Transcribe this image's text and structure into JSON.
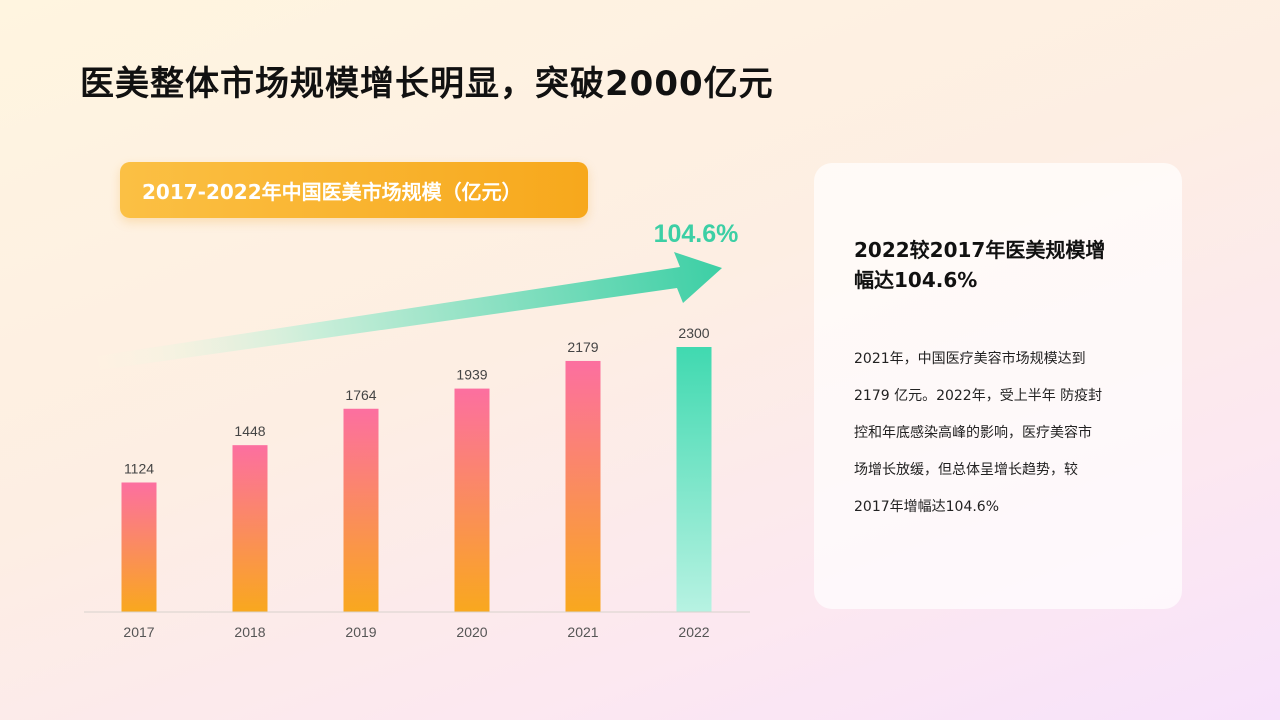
{
  "page": {
    "title": "医美整体市场规模增长明显，突破2000亿元"
  },
  "chart_banner": {
    "label": "2017-2022年中国医美市场规模（亿元）"
  },
  "growth_arrow": {
    "label": "104.6%",
    "color": "#3ccfa5"
  },
  "info_card": {
    "heading": "2022较2017年医美规模增幅达104.6%",
    "body_lines": [
      "2021年，中国医疗美容市场规模达到",
      "2179 亿元。2022年，受上半年 防疫封",
      "控和年底感染高峰的影响，医疗美容市",
      "场增长放缓，但总体呈增长趋势，较",
      "2017年增幅达104.6%"
    ]
  },
  "chart_data": {
    "type": "bar",
    "categories": [
      "2017",
      "2018",
      "2019",
      "2020",
      "2021",
      "2022"
    ],
    "values": [
      1124,
      1448,
      1764,
      1939,
      2179,
      2300
    ],
    "title": "2017-2022年中国医美市场规模（亿元）",
    "xlabel": "",
    "ylabel": "",
    "ylim": [
      0,
      2300
    ],
    "grid": false,
    "data_labels": true,
    "colors": {
      "bar_top": "#fc6fa0",
      "bar_bottom": "#f9a81e",
      "highlight_top": "#40d9b0",
      "highlight_bottom": "#b7f2e2",
      "highlight_category": "2022"
    }
  }
}
